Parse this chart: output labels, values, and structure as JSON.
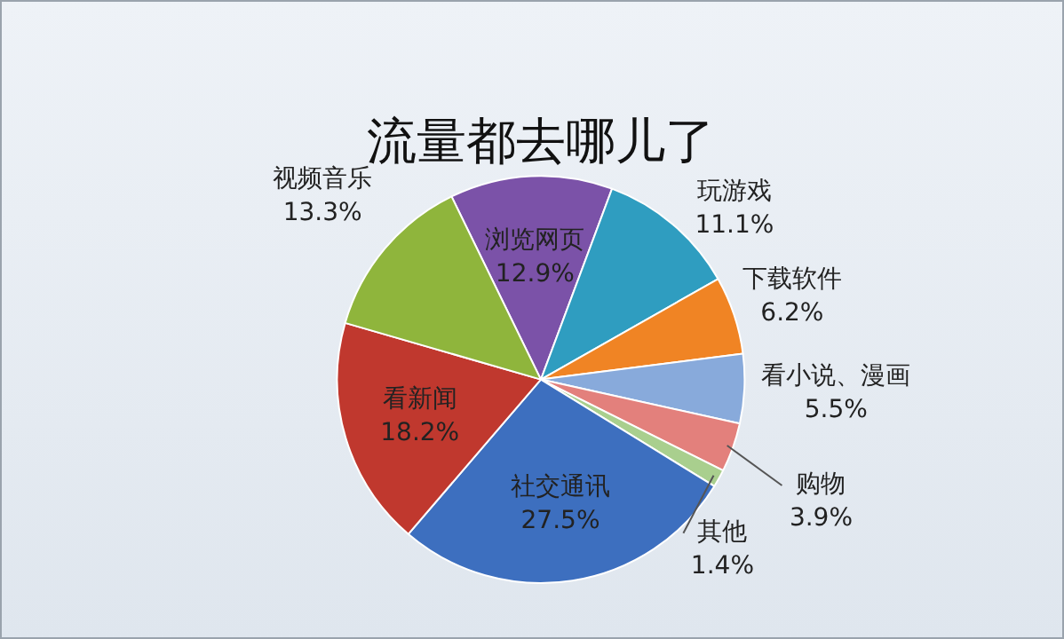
{
  "chart_data": {
    "type": "pie",
    "title": "流量都去哪儿了",
    "categories": [
      "浏览网页",
      "玩游戏",
      "下载软件",
      "看小说、漫画",
      "购物",
      "其他",
      "社交通讯",
      "看新闻",
      "视频音乐"
    ],
    "values": [
      12.9,
      11.1,
      6.2,
      5.5,
      3.9,
      1.4,
      27.5,
      18.2,
      13.3
    ],
    "value_labels": [
      "12.9%",
      "11.1%",
      "6.2%",
      "5.5%",
      "3.9%",
      "1.4%",
      "27.5%",
      "18.2%",
      "13.3%"
    ],
    "colors": [
      "#7b52a8",
      "#2f9dc0",
      "#f08424",
      "#88aadb",
      "#e3807c",
      "#a9cf8e",
      "#3d6fbf",
      "#c0382e",
      "#8fb53c"
    ],
    "legend": false
  }
}
